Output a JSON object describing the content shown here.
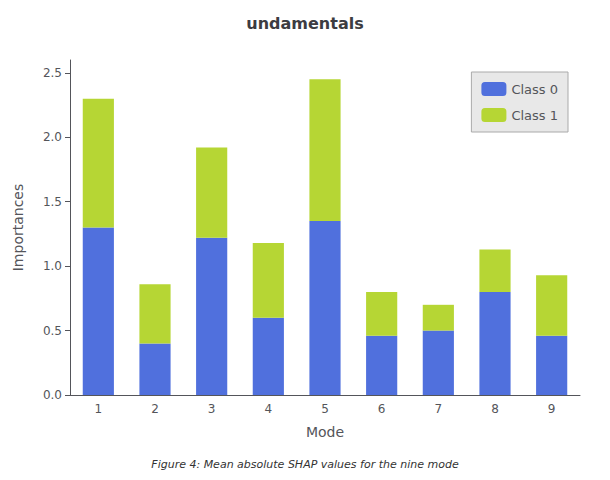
{
  "chart_data": {
    "type": "bar",
    "title": "undamentals",
    "caption": "Figure 4: Mean absolute SHAP values for the nine mode",
    "xlabel": "Mode",
    "ylabel": "Importances",
    "categories": [
      1,
      2,
      3,
      4,
      5,
      6,
      7,
      8,
      9
    ],
    "series": [
      {
        "name": "Class 0",
        "values": [
          1.3,
          0.4,
          1.22,
          0.6,
          1.35,
          0.46,
          0.5,
          0.8,
          0.46
        ]
      },
      {
        "name": "Class 1",
        "values": [
          1.0,
          0.46,
          0.7,
          0.58,
          1.1,
          0.34,
          0.2,
          0.33,
          0.47
        ]
      }
    ],
    "stacked": true,
    "ylim": [
      0,
      2.6
    ],
    "yticks": [
      {
        "value": 0,
        "label": "0.0"
      },
      0.5,
      {
        "value": 1,
        "label": "1.0"
      },
      1.5,
      {
        "value": 2,
        "label": "2.0"
      },
      2.5
    ],
    "grid": false,
    "legend": "upper right"
  }
}
